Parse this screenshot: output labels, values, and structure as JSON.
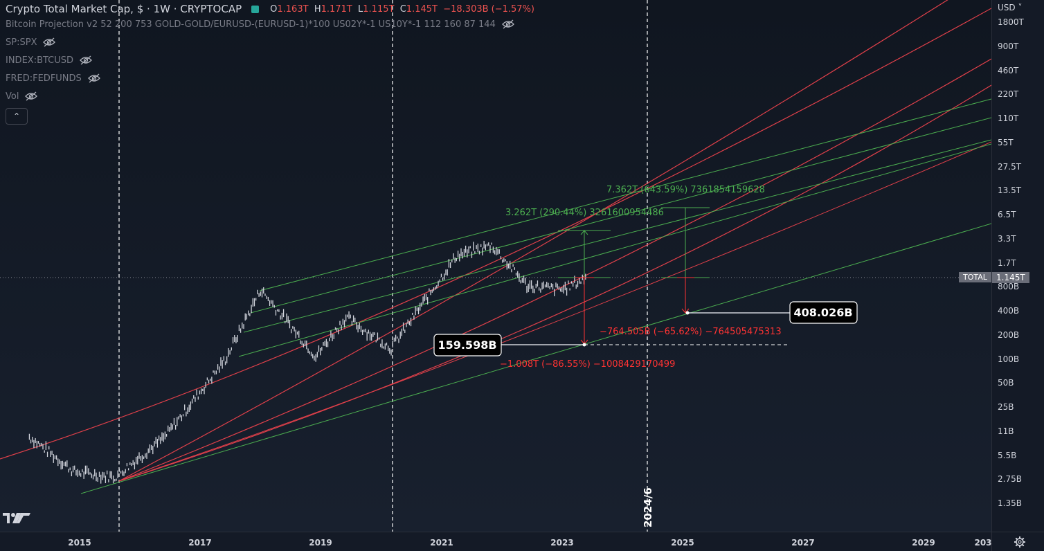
{
  "header": {
    "title": "Crypto Total Market Cap, $ · 1W · CRYPTOCAP",
    "ohlc": {
      "open_label": "O",
      "open": "1.163T",
      "high_label": "H",
      "high": "1.171T",
      "low_label": "L",
      "low": "1.115T",
      "close_label": "C",
      "close": "1.145T",
      "change": "−18.303B (−1.57%)"
    },
    "indicators": [
      {
        "label": "Bitcoin Projection v2 52 200 753 GOLD-GOLD/EURUSD-(EURUSD-1)*100 US02Y*-1 US10Y*-1 112 160 87 144",
        "icon": "eye-hidden-icon"
      },
      {
        "label": "SP:SPX",
        "icon": "eye-hidden-icon"
      },
      {
        "label": "INDEX:BTCUSD",
        "icon": "eye-hidden-icon"
      },
      {
        "label": "FRED:FEDFUNDS",
        "icon": "eye-hidden-icon"
      },
      {
        "label": "Vol",
        "icon": "eye-hidden-icon"
      }
    ],
    "collapse_icon": "chevron-up-icon"
  },
  "price_axis": {
    "currency": "USD",
    "symbol_tag": "TOTAL",
    "last_price": "1.145T",
    "ticks": [
      "1800T",
      "900T",
      "460T",
      "220T",
      "110T",
      "55T",
      "27.5T",
      "13.5T",
      "6.5T",
      "3.3T",
      "1.7T",
      "800B",
      "400B",
      "200B",
      "100B",
      "50B",
      "25B",
      "11B",
      "5.5B",
      "2.75B",
      "1.35B"
    ]
  },
  "time_axis": {
    "ticks": [
      "2015",
      "2017",
      "2019",
      "2021",
      "2023",
      "2025",
      "2027",
      "2029",
      "203"
    ],
    "settings_icon": "gear-icon",
    "logo": "tradingview-logo"
  },
  "annotations": {
    "vertical_date_label": "2024/6",
    "callout_low": "159.598B",
    "callout_target": "408.026B",
    "measure_up_1": "3.262T (290.44%) 3261600954486",
    "measure_up_2": "7.362T (643.59%) 7361854159628",
    "measure_down_1": "−764.505B (−65.62%) −764505475313",
    "measure_down_2": "−1.008T (−86.55%) −1008429170499"
  },
  "colors": {
    "background": "#141a26",
    "red_lines": "#e0404a",
    "green_lines": "#4caf50",
    "candles": "#d1d4dc",
    "measure_green": "#4caf50",
    "measure_red": "#ff3333"
  },
  "chart_data": {
    "type": "line",
    "title": "Crypto Total Market Cap",
    "y_scale": "log",
    "x_range": [
      "2014",
      "2030"
    ],
    "ylim": [
      "1.35B",
      "1800T"
    ],
    "grid": false,
    "series": [
      {
        "values_approx": [
          {
            "x": "2014-03",
            "y": 10000000000
          },
          {
            "x": "2014-12",
            "y": 3500000000
          },
          {
            "x": "2015-08",
            "y": 3000000000
          },
          {
            "x": "2016-06",
            "y": 10000000000
          },
          {
            "x": "2017-06",
            "y": 100000000000
          },
          {
            "x": "2018-01",
            "y": 800000000000
          },
          {
            "x": "2018-12",
            "y": 110000000000
          },
          {
            "x": "2019-06",
            "y": 350000000000
          },
          {
            "x": "2020-03",
            "y": 140000000000
          },
          {
            "x": "2021-04",
            "y": 2200000000000
          },
          {
            "x": "2021-11",
            "y": 3000000000000
          },
          {
            "x": "2022-06",
            "y": 900000000000
          },
          {
            "x": "2023-01",
            "y": 800000000000
          },
          {
            "x": "2023-06",
            "y": 1145000000000
          }
        ]
      }
    ]
  }
}
